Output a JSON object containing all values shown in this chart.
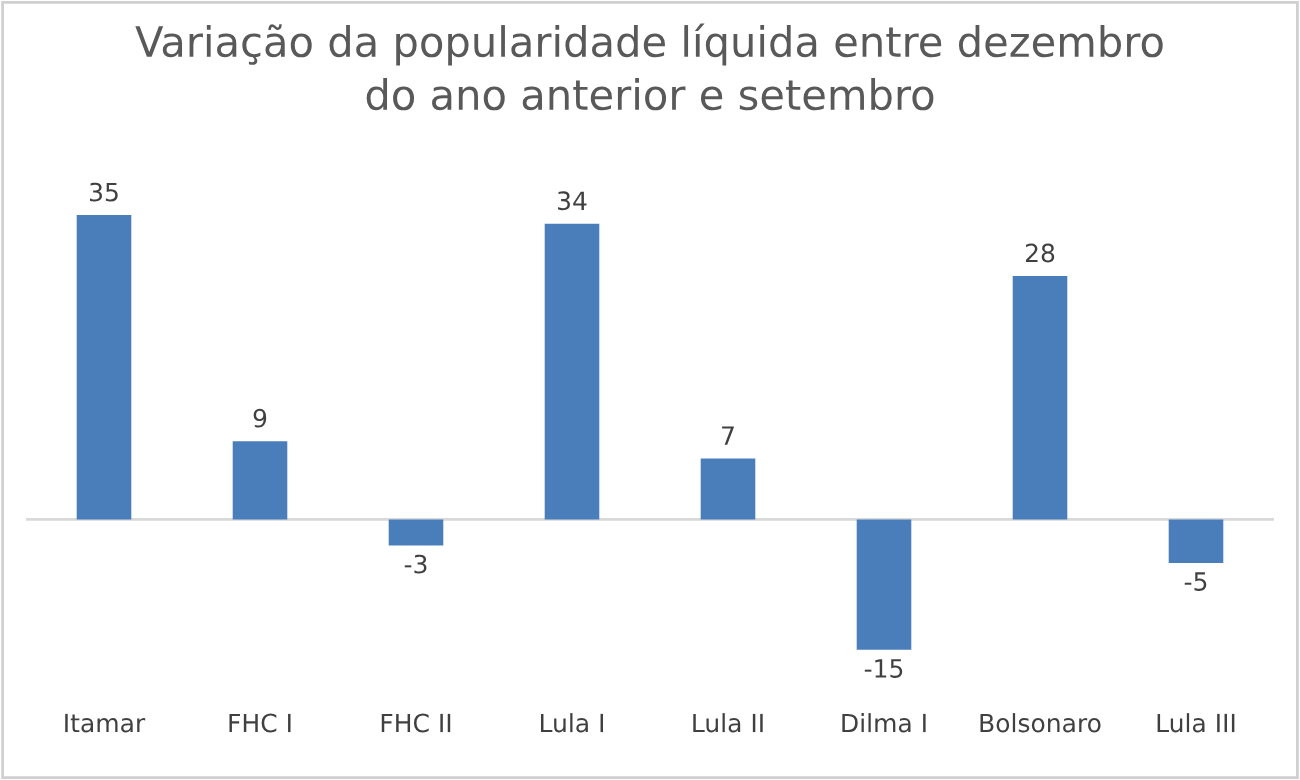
{
  "chart_data": {
    "type": "bar",
    "title": "Variação da popularidade líquida entre dezembro\ndo ano anterior e setembro",
    "categories": [
      "Itamar",
      "FHC I",
      "FHC II",
      "Lula I",
      "Lula II",
      "Dilma I",
      "Bolsonaro",
      "Lula III"
    ],
    "values": [
      35,
      9,
      -3,
      34,
      7,
      -15,
      28,
      -5
    ],
    "color": "#4a7ebb",
    "data_labels": true,
    "grid": false,
    "legend": false
  }
}
